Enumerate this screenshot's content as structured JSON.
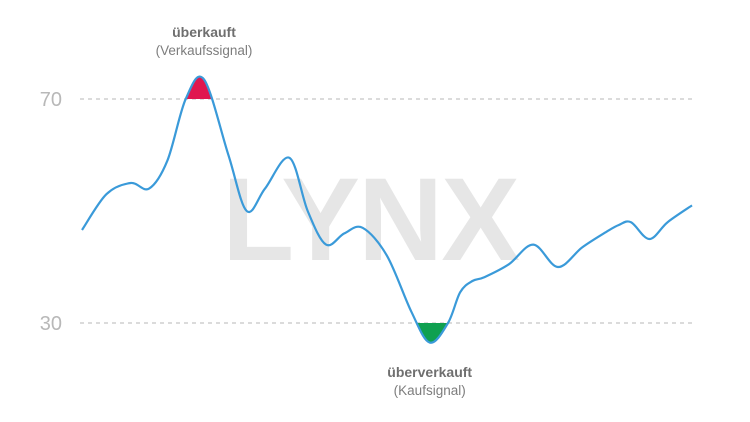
{
  "watermark": "LYNX",
  "chart_data": {
    "type": "line",
    "title": "",
    "xlabel": "",
    "ylabel": "",
    "y_ticks": [
      "70",
      "30"
    ],
    "ylim": [
      23,
      88
    ],
    "thresholds": [
      {
        "value": 70,
        "style": "dashed"
      },
      {
        "value": 30,
        "style": "dashed"
      }
    ],
    "series": [
      {
        "color": "#3a9ad9",
        "x": [
          0,
          4,
          8,
          11,
          14,
          17,
          20,
          24,
          27,
          30,
          34,
          37,
          40,
          43,
          46,
          50,
          54,
          57,
          60,
          62,
          64,
          66,
          70,
          74,
          78,
          82,
          86,
          88,
          90,
          93,
          96,
          100
        ],
        "y": [
          46.6,
          53.0,
          55.0,
          54.0,
          59.0,
          70.0,
          73.5,
          60.0,
          50.0,
          54.0,
          59.5,
          50.0,
          44.0,
          46.0,
          47.0,
          42.0,
          32.0,
          26.5,
          30.0,
          35.5,
          37.5,
          38.2,
          40.5,
          44.0,
          40.0,
          43.5,
          46.3,
          47.5,
          48.0,
          45.0,
          48.0,
          51.0
        ]
      }
    ],
    "annotations": [
      {
        "title": "überkauft",
        "subtitle": "(Verkaufssignal)",
        "x": 20,
        "fill_color": "#e0174f",
        "threshold": 70,
        "region": "above"
      },
      {
        "title": "überverkauft",
        "subtitle": "(Kaufsignal)",
        "x": 57,
        "fill_color": "#0fa050",
        "threshold": 30,
        "region": "below"
      }
    ]
  }
}
